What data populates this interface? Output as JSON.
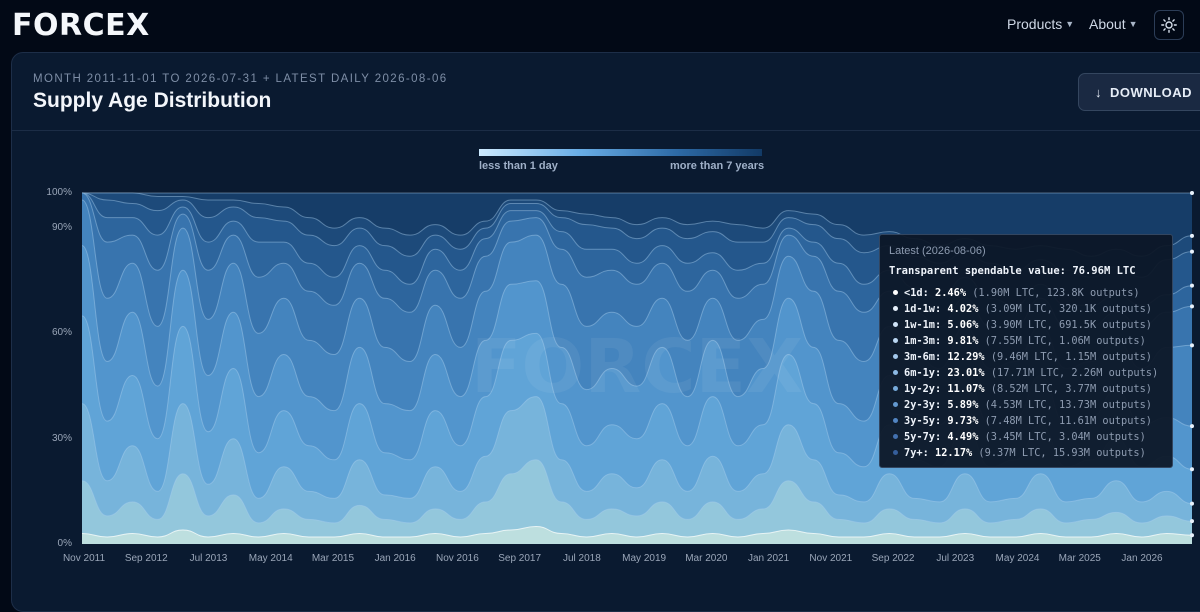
{
  "brand": {
    "logo_text": "FORCEX"
  },
  "nav": {
    "items": [
      {
        "label": "Products",
        "name": "nav-products"
      },
      {
        "label": "About",
        "name": "nav-about"
      }
    ],
    "theme_icon": "sun-icon"
  },
  "header": {
    "subtitle": "MONTH 2011-11-01 TO 2026-07-31 + LATEST DAILY 2026-08-06",
    "title": "Supply Age Distribution",
    "download_label": "DOWNLOAD",
    "download_icon": "arrow-down-icon"
  },
  "scale_legend": {
    "min_label": "less than 1 day",
    "max_label": "more than 7 years"
  },
  "tooltip": {
    "title": "Latest (2026-08-06)",
    "total_label": "Transparent spendable value:",
    "total_value": "76.96M LTC",
    "rows": [
      {
        "label": "<1d:",
        "pct": "2.46%",
        "detail": "(1.90M LTC, 123.8K outputs)"
      },
      {
        "label": "1d-1w:",
        "pct": "4.02%",
        "detail": "(3.09M LTC, 320.1K outputs)"
      },
      {
        "label": "1w-1m:",
        "pct": "5.06%",
        "detail": "(3.90M LTC, 691.5K outputs)"
      },
      {
        "label": "1m-3m:",
        "pct": "9.81%",
        "detail": "(7.55M LTC, 1.06M outputs)"
      },
      {
        "label": "3m-6m:",
        "pct": "12.29%",
        "detail": "(9.46M LTC, 1.15M outputs)"
      },
      {
        "label": "6m-1y:",
        "pct": "23.01%",
        "detail": "(17.71M LTC, 2.26M outputs)"
      },
      {
        "label": "1y-2y:",
        "pct": "11.07%",
        "detail": "(8.52M LTC, 3.77M outputs)"
      },
      {
        "label": "2y-3y:",
        "pct": "5.89%",
        "detail": "(4.53M LTC, 13.73M outputs)"
      },
      {
        "label": "3y-5y:",
        "pct": "9.73%",
        "detail": "(7.48M LTC, 11.61M outputs)"
      },
      {
        "label": "5y-7y:",
        "pct": "4.49%",
        "detail": "(3.45M LTC, 3.04M outputs)"
      },
      {
        "label": "7y+:",
        "pct": "12.17%",
        "detail": "(9.37M LTC, 15.93M outputs)"
      }
    ]
  },
  "chart_data": {
    "type": "area",
    "stacked": true,
    "ylim": [
      0,
      100
    ],
    "y_ticks": [
      {
        "value": 0,
        "label": "0%"
      },
      {
        "value": 30,
        "label": "30%"
      },
      {
        "value": 60,
        "label": "60%"
      },
      {
        "value": 90,
        "label": "90%"
      },
      {
        "value": 100,
        "label": "100%"
      }
    ],
    "x_ticks": [
      "Nov 2011",
      "Sep 2012",
      "Jul 2013",
      "May 2014",
      "Mar 2015",
      "Jan 2016",
      "Nov 2016",
      "Sep 2017",
      "Jul 2018",
      "May 2019",
      "Mar 2020",
      "Jan 2021",
      "Nov 2021",
      "Sep 2022",
      "Jul 2023",
      "May 2024",
      "Mar 2025",
      "Jan 2026"
    ],
    "watermark": "FORCEX",
    "band_colors": [
      "#bfe0de",
      "#96c9dc",
      "#7ab6dc",
      "#62a5d8",
      "#5497ce",
      "#4686c0",
      "#3a76b0",
      "#2f679f",
      "#26598e",
      "#1e4b7c",
      "#173f6b"
    ],
    "x": [
      "Nov 2011",
      "Mar 2012",
      "Jul 2012",
      "Nov 2012",
      "Mar 2013",
      "Jul 2013",
      "Nov 2013",
      "Mar 2014",
      "Jul 2014",
      "Nov 2014",
      "Mar 2015",
      "Jul 2015",
      "Nov 2015",
      "Mar 2016",
      "Jul 2016",
      "Nov 2016",
      "Mar 2017",
      "Jul 2017",
      "Nov 2017",
      "Mar 2018",
      "Jul 2018",
      "Nov 2018",
      "Mar 2019",
      "Jul 2019",
      "Nov 2019",
      "Mar 2020",
      "Jul 2020",
      "Nov 2020",
      "Mar 2021",
      "Jul 2021",
      "Nov 2021",
      "Mar 2022",
      "Jul 2022",
      "Nov 2022",
      "Mar 2023",
      "Jul 2023",
      "Nov 2023",
      "Mar 2024",
      "Jul 2024",
      "Nov 2024",
      "Mar 2025",
      "Jul 2025",
      "Nov 2025",
      "Mar 2026",
      "Aug 2026"
    ],
    "cumulative_boundaries": {
      "<1d": [
        3,
        2,
        3,
        2,
        4,
        2,
        3,
        2,
        3,
        2,
        2,
        3,
        2,
        2,
        3,
        2,
        3,
        4,
        5,
        3,
        2,
        3,
        2,
        3,
        2,
        3,
        2,
        3,
        4,
        3,
        2,
        2,
        3,
        2,
        2,
        3,
        2,
        2,
        3,
        2,
        2,
        3,
        2,
        3,
        2.5
      ],
      "1d-1w": [
        18,
        8,
        12,
        7,
        20,
        8,
        14,
        6,
        10,
        7,
        6,
        11,
        7,
        6,
        10,
        7,
        12,
        20,
        24,
        12,
        7,
        10,
        8,
        12,
        7,
        12,
        7,
        10,
        18,
        12,
        7,
        6,
        10,
        7,
        6,
        10,
        6,
        7,
        10,
        6,
        7,
        9,
        6,
        8,
        6.5
      ],
      "1w-1m": [
        40,
        18,
        28,
        15,
        40,
        17,
        30,
        13,
        22,
        15,
        13,
        24,
        14,
        13,
        22,
        15,
        25,
        38,
        42,
        24,
        15,
        20,
        16,
        24,
        15,
        25,
        15,
        20,
        34,
        24,
        14,
        12,
        20,
        13,
        12,
        20,
        12,
        13,
        20,
        12,
        13,
        18,
        12,
        15,
        11.5
      ],
      "1m-3m": [
        65,
        35,
        48,
        30,
        62,
        32,
        50,
        26,
        38,
        28,
        24,
        40,
        26,
        24,
        38,
        28,
        42,
        58,
        60,
        40,
        28,
        34,
        30,
        40,
        28,
        42,
        28,
        34,
        54,
        40,
        26,
        22,
        34,
        24,
        22,
        34,
        22,
        24,
        34,
        22,
        24,
        30,
        22,
        25,
        21.3
      ],
      "3m-6m": [
        85,
        52,
        66,
        45,
        78,
        48,
        66,
        42,
        54,
        42,
        38,
        56,
        40,
        38,
        54,
        42,
        58,
        74,
        75,
        56,
        44,
        50,
        45,
        56,
        42,
        58,
        42,
        50,
        70,
        56,
        40,
        35,
        48,
        37,
        34,
        48,
        34,
        36,
        48,
        34,
        36,
        44,
        34,
        36,
        33.6
      ],
      "6m-1y": [
        98,
        70,
        80,
        62,
        90,
        64,
        80,
        60,
        70,
        58,
        54,
        70,
        56,
        52,
        68,
        56,
        72,
        86,
        88,
        74,
        62,
        66,
        62,
        70,
        58,
        70,
        58,
        64,
        82,
        72,
        58,
        52,
        62,
        54,
        50,
        62,
        50,
        52,
        62,
        50,
        52,
        58,
        50,
        56,
        56.6
      ],
      "1y-2y": [
        100,
        86,
        88,
        78,
        94,
        78,
        88,
        76,
        80,
        72,
        68,
        80,
        70,
        66,
        78,
        70,
        82,
        92,
        93,
        84,
        76,
        78,
        74,
        80,
        72,
        78,
        70,
        74,
        88,
        82,
        72,
        66,
        72,
        66,
        62,
        70,
        62,
        62,
        70,
        62,
        62,
        66,
        62,
        66,
        67.7
      ],
      "2y-3y": [
        100,
        93,
        93,
        88,
        96,
        86,
        92,
        86,
        86,
        80,
        76,
        85,
        78,
        74,
        84,
        78,
        87,
        95,
        95,
        89,
        84,
        84,
        80,
        85,
        80,
        83,
        78,
        80,
        90,
        86,
        80,
        74,
        78,
        73,
        70,
        76,
        70,
        68,
        74,
        68,
        68,
        71,
        68,
        71,
        73.6
      ],
      "3y-5y": [
        100,
        98,
        97,
        95,
        98,
        93,
        96,
        93,
        92,
        88,
        85,
        90,
        85,
        82,
        88,
        84,
        90,
        97,
        97,
        93,
        91,
        90,
        87,
        90,
        87,
        89,
        86,
        86,
        93,
        91,
        87,
        83,
        85,
        82,
        80,
        83,
        80,
        78,
        81,
        78,
        76,
        79,
        76,
        81,
        83.3
      ],
      "5y-7y": [
        100,
        100,
        100,
        99,
        99,
        98,
        98,
        97,
        96,
        93,
        90,
        93,
        90,
        88,
        91,
        88,
        92,
        98,
        98,
        95,
        94,
        93,
        91,
        93,
        91,
        92,
        91,
        90,
        95,
        94,
        91,
        88,
        89,
        87,
        85,
        87,
        85,
        84,
        85,
        84,
        82,
        84,
        82,
        85,
        87.8
      ],
      "7y+": [
        100,
        100,
        100,
        100,
        100,
        100,
        100,
        100,
        100,
        100,
        100,
        100,
        100,
        100,
        100,
        100,
        100,
        100,
        100,
        100,
        100,
        100,
        100,
        100,
        100,
        100,
        100,
        100,
        100,
        100,
        100,
        100,
        100,
        100,
        100,
        100,
        100,
        100,
        100,
        100,
        100,
        100,
        100,
        100,
        100
      ]
    }
  }
}
